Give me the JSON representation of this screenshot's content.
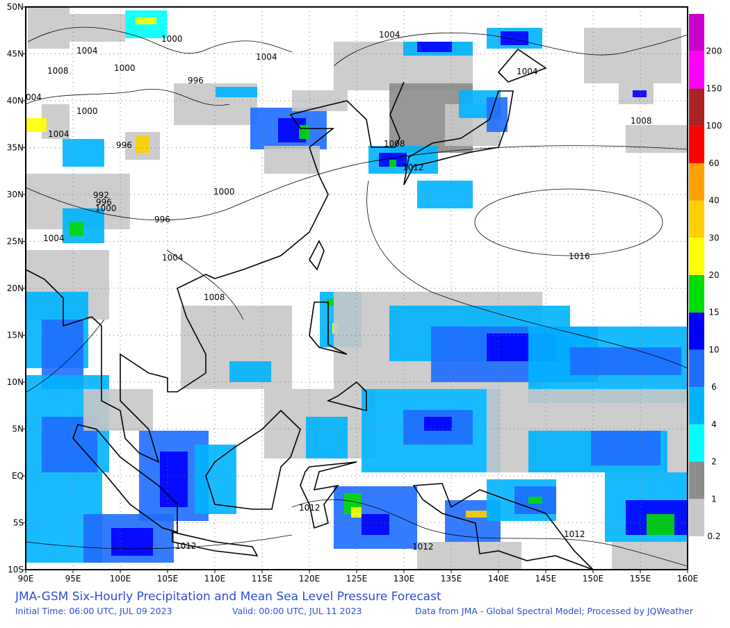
{
  "map": {
    "title": "JMA-GSM Six-Hourly Precipitation and Mean Sea Level Pressure Forecast",
    "initial_time": "Initial Time: 06:00 UTC, JUL 09 2023",
    "valid_time": "Valid: 00:00 UTC, JUL 11 2023",
    "credit": "Data from JMA - Global Spectral Model; Processed by JQWeather",
    "lon_labels": [
      "90E",
      "95E",
      "100E",
      "105E",
      "110E",
      "115E",
      "120E",
      "125E",
      "130E",
      "135E",
      "140E",
      "145E",
      "150E",
      "155E",
      "160E"
    ],
    "lat_labels": [
      "50N",
      "45N",
      "40N",
      "35N",
      "30N",
      "25N",
      "20N",
      "15N",
      "10N",
      "5N",
      "EQ",
      "5S",
      "10S"
    ],
    "contour_labels": [
      "1000",
      "1004",
      "1004",
      "1004",
      "1008",
      "1000",
      "996",
      "1004",
      "004",
      "1000",
      "1004",
      "996",
      "1008",
      "1008",
      "1012",
      "1000",
      "992",
      "996",
      "1000",
      "996",
      "1004",
      "1016",
      "1004",
      "1008",
      "1012",
      "1012",
      "1012",
      "1012"
    ],
    "legend": {
      "levels": [
        0.2,
        1,
        2,
        4,
        6,
        10,
        15,
        20,
        30,
        40,
        60,
        100,
        150,
        200
      ],
      "colors": [
        "#c8c8c8",
        "#8c8c8c",
        "#00ffff",
        "#00b4ff",
        "#1e6eff",
        "#0000ff",
        "#00dd00",
        "#ffff00",
        "#ffd000",
        "#ffa000",
        "#ff0000",
        "#aa2222",
        "#ff00ff",
        "#cc00cc"
      ]
    }
  }
}
